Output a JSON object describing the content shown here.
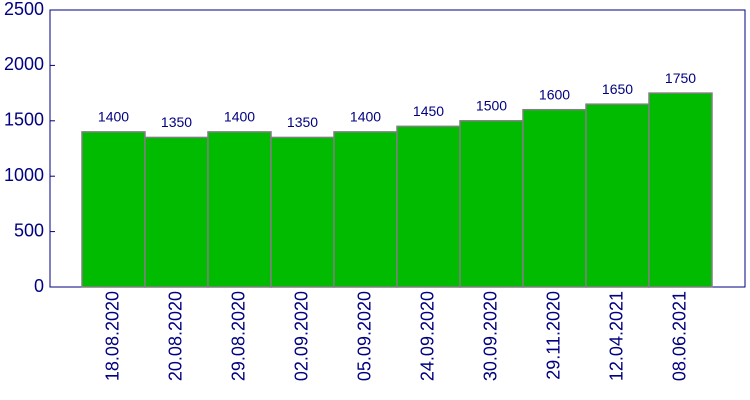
{
  "chart_data": {
    "type": "bar",
    "categories": [
      "18.08.2020",
      "20.08.2020",
      "29.08.2020",
      "02.09.2020",
      "05.09.2020",
      "24.09.2020",
      "30.09.2020",
      "29.11.2020",
      "12.04.2021",
      "08.06.2021"
    ],
    "values": [
      1400,
      1350,
      1400,
      1350,
      1400,
      1450,
      1500,
      1600,
      1650,
      1750
    ],
    "color": "#00bb00",
    "ylim": [
      0,
      2500
    ],
    "yticks": [
      0,
      500,
      1000,
      1500,
      2000,
      2500
    ]
  }
}
